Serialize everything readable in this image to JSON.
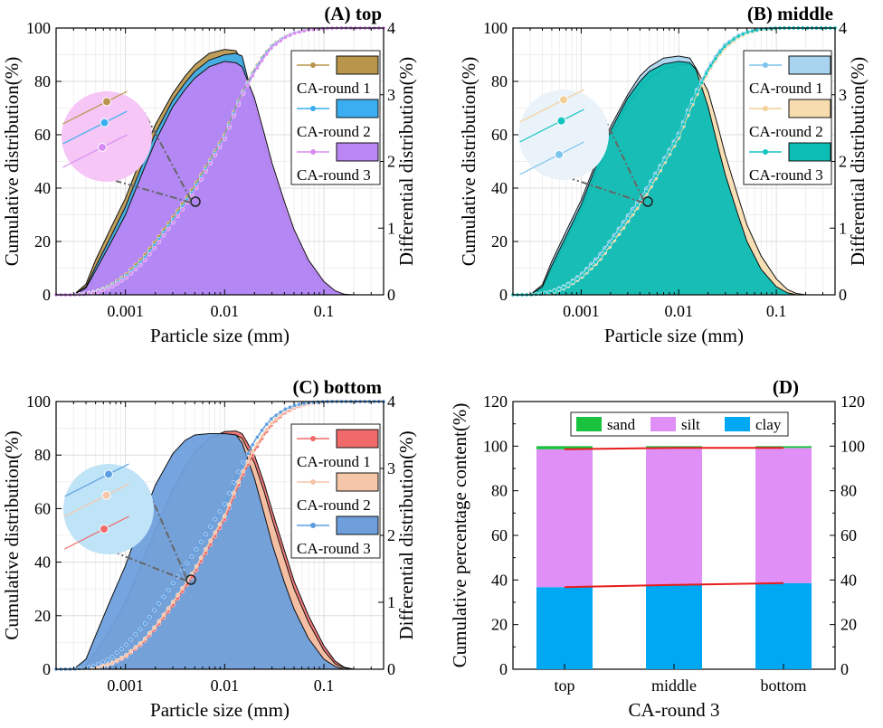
{
  "colors": {
    "top": [
      "#b8954a",
      "#3aaef0",
      "#d88cf2"
    ],
    "middle": [
      "#7cc4ec",
      "#f2cf98",
      "#12c4c0"
    ],
    "bottom": [
      "#f06a6a",
      "#f5c6a8",
      "#5c9ee2"
    ],
    "top_fill": [
      "#b8954a",
      "#3aaef0",
      "#b986f4"
    ],
    "middle_fill": [
      "#a8d4f0",
      "#f6dcae",
      "#0cbdb5"
    ],
    "bottom_fill": [
      "#f06a6a",
      "#f5c6a8",
      "#6e9fdc"
    ],
    "magnifier": [
      "#f6c6f6",
      "#ebf3fa",
      "#bfe3f7"
    ],
    "sand": "#19c23f",
    "silt": "#df8ff5",
    "clay": "#00a7f2",
    "trend": "#e81c1c"
  },
  "chart_data": [
    {
      "type": "area",
      "panel": "A",
      "title": "(A) top",
      "xlabel": "Particle size (mm)",
      "ylabel": "Cumulative distribution(%)",
      "y2label": "Differential distribution(%)",
      "xscale": "log",
      "xlim": [
        0.0002,
        0.4
      ],
      "ylim": [
        0,
        100
      ],
      "y2lim": [
        0,
        4
      ],
      "xticks": [
        "0.001",
        "0.01",
        "0.1"
      ],
      "yticks": [
        "0",
        "20",
        "40",
        "60",
        "80",
        "100"
      ],
      "y2ticks": [
        "0",
        "1",
        "2",
        "3",
        "4"
      ],
      "legend_position": "right",
      "x": [
        0.0002,
        0.0003,
        0.0004,
        0.0005,
        0.0007,
        0.001,
        0.0015,
        0.002,
        0.003,
        0.004,
        0.005,
        0.007,
        0.01,
        0.013,
        0.015,
        0.02,
        0.025,
        0.03,
        0.04,
        0.05,
        0.07,
        0.1,
        0.13,
        0.16,
        0.2,
        0.3,
        0.4
      ],
      "series": [
        {
          "name": "CA-round 1",
          "differential": [
            0,
            0,
            0.16,
            0.52,
            0.98,
            1.45,
            2.12,
            2.55,
            3.02,
            3.28,
            3.45,
            3.62,
            3.68,
            3.66,
            3.5,
            2.75,
            2.2,
            1.75,
            1.2,
            0.82,
            0.42,
            0.14,
            0.03,
            0,
            0,
            0,
            0
          ],
          "cumulative": [
            0,
            0.05,
            0.4,
            1.2,
            3.4,
            7.4,
            14,
            20,
            29,
            35.5,
            41,
            50,
            60,
            70.5,
            75.5,
            84.5,
            90,
            93.5,
            96.8,
            98.3,
            99.5,
            99.9,
            100,
            100,
            100,
            100,
            100
          ]
        },
        {
          "name": "CA-round 2",
          "differential": [
            0,
            0,
            0.12,
            0.42,
            0.85,
            1.32,
            1.98,
            2.42,
            2.92,
            3.18,
            3.35,
            3.52,
            3.6,
            3.62,
            3.58,
            2.85,
            2.3,
            1.85,
            1.28,
            0.88,
            0.46,
            0.16,
            0.04,
            0,
            0,
            0,
            0
          ],
          "cumulative": [
            0,
            0.03,
            0.3,
            1,
            3,
            6.8,
            13,
            19,
            28,
            34.5,
            40,
            49.2,
            59.2,
            69.8,
            75,
            84,
            89.6,
            93.2,
            96.6,
            98.2,
            99.4,
            99.9,
            100,
            100,
            100,
            100,
            100
          ]
        },
        {
          "name": "CA-round 3",
          "differential": [
            0,
            0,
            0.1,
            0.36,
            0.76,
            1.2,
            1.85,
            2.3,
            2.82,
            3.08,
            3.25,
            3.42,
            3.5,
            3.48,
            3.42,
            2.95,
            2.42,
            1.98,
            1.4,
            0.98,
            0.52,
            0.2,
            0.06,
            0.01,
            0,
            0,
            0
          ],
          "cumulative": [
            0,
            0.02,
            0.2,
            0.8,
            2.6,
            6.2,
            12,
            18,
            27,
            33.5,
            39,
            48.5,
            58.5,
            69,
            74.5,
            83.5,
            89,
            92.8,
            96.3,
            98,
            99.3,
            99.8,
            100,
            100,
            100,
            100,
            100
          ]
        }
      ]
    },
    {
      "type": "area",
      "panel": "B",
      "title": "(B) middle",
      "xlabel": "Particle size (mm)",
      "ylabel": "Cumulative distribution(%)",
      "y2label": "Differential distribution(%)",
      "xscale": "log",
      "xlim": [
        0.0002,
        0.4
      ],
      "ylim": [
        0,
        100
      ],
      "y2lim": [
        0,
        4
      ],
      "xticks": [
        "0.001",
        "0.01",
        "0.1"
      ],
      "yticks": [
        "0",
        "20",
        "40",
        "60",
        "80",
        "100"
      ],
      "y2ticks": [
        "0",
        "1",
        "2",
        "3",
        "4"
      ],
      "legend_position": "right",
      "x": [
        0.0002,
        0.0003,
        0.0004,
        0.0005,
        0.0007,
        0.001,
        0.0015,
        0.002,
        0.003,
        0.004,
        0.005,
        0.007,
        0.01,
        0.013,
        0.015,
        0.02,
        0.025,
        0.03,
        0.04,
        0.05,
        0.07,
        0.1,
        0.13,
        0.16,
        0.2,
        0.3,
        0.4
      ],
      "series": [
        {
          "name": "CA-round 1",
          "differential": [
            0,
            0,
            0.15,
            0.5,
            0.95,
            1.42,
            2.08,
            2.52,
            3,
            3.28,
            3.42,
            3.55,
            3.58,
            3.55,
            3.4,
            2.72,
            2.15,
            1.7,
            1.12,
            0.72,
            0.32,
            0.08,
            0.02,
            0,
            0,
            0,
            0
          ],
          "cumulative": [
            0,
            0.05,
            0.4,
            1.2,
            3.5,
            7.6,
            14.2,
            20.3,
            29.5,
            36,
            41.5,
            50.5,
            60.5,
            71,
            76,
            85,
            90.5,
            94,
            97.2,
            98.6,
            99.7,
            100,
            100,
            100,
            100,
            100,
            100
          ]
        },
        {
          "name": "CA-round 2",
          "differential": [
            0,
            0,
            0.1,
            0.38,
            0.8,
            1.25,
            1.9,
            2.35,
            2.85,
            3.1,
            3.25,
            3.38,
            3.45,
            3.45,
            3.4,
            3.05,
            2.55,
            2.1,
            1.5,
            1.05,
            0.58,
            0.24,
            0.08,
            0.02,
            0,
            0,
            0
          ],
          "cumulative": [
            0,
            0.03,
            0.3,
            0.9,
            2.8,
            6.5,
            12.5,
            18.5,
            27.5,
            34,
            39.5,
            49,
            59,
            69.2,
            74.5,
            83.5,
            89,
            92.6,
            96.2,
            98,
            99.3,
            99.8,
            100,
            100,
            100,
            100,
            100
          ]
        },
        {
          "name": "CA-round 3",
          "differential": [
            0,
            0,
            0.12,
            0.44,
            0.88,
            1.35,
            2.02,
            2.46,
            2.95,
            3.2,
            3.35,
            3.46,
            3.5,
            3.48,
            3.38,
            2.82,
            2.25,
            1.8,
            1.22,
            0.8,
            0.38,
            0.12,
            0.03,
            0,
            0,
            0,
            0
          ],
          "cumulative": [
            0,
            0.04,
            0.35,
            1,
            3.1,
            7,
            13.2,
            19.3,
            28.5,
            35,
            40.5,
            49.8,
            59.8,
            70.2,
            75.3,
            84.3,
            89.8,
            93.4,
            96.8,
            98.4,
            99.6,
            99.95,
            100,
            100,
            100,
            100,
            100
          ]
        }
      ]
    },
    {
      "type": "area",
      "panel": "C",
      "title": "(C) bottom",
      "xlabel": "Particle size (mm)",
      "ylabel": "Cumulative distribution(%)",
      "y2label": "Differential distribution(%)",
      "xscale": "log",
      "xlim": [
        0.0002,
        0.4
      ],
      "ylim": [
        0,
        100
      ],
      "y2lim": [
        0,
        4
      ],
      "xticks": [
        "0.001",
        "0.01",
        "0.1"
      ],
      "yticks": [
        "0",
        "20",
        "40",
        "60",
        "80",
        "100"
      ],
      "y2ticks": [
        "0",
        "1",
        "2",
        "3",
        "4"
      ],
      "legend_position": "right",
      "x": [
        0.0002,
        0.0003,
        0.0004,
        0.0005,
        0.0007,
        0.001,
        0.0015,
        0.002,
        0.003,
        0.004,
        0.005,
        0.007,
        0.01,
        0.013,
        0.015,
        0.02,
        0.025,
        0.03,
        0.04,
        0.05,
        0.07,
        0.1,
        0.13,
        0.16,
        0.2,
        0.3,
        0.4
      ],
      "series": [
        {
          "name": "CA-round 1",
          "differential": [
            0,
            0,
            0.05,
            0.22,
            0.55,
            0.95,
            1.55,
            2.02,
            2.62,
            2.98,
            3.22,
            3.45,
            3.55,
            3.56,
            3.52,
            3.2,
            2.78,
            2.38,
            1.78,
            1.32,
            0.8,
            0.35,
            0.12,
            0.03,
            0,
            0,
            0
          ],
          "cumulative": [
            0,
            0.02,
            0.15,
            0.5,
            1.8,
            4.6,
            9.8,
            15.2,
            23.8,
            30.5,
            36,
            45.8,
            56,
            66.5,
            72,
            81.5,
            87.5,
            91.5,
            95.6,
            97.6,
            99.1,
            99.7,
            99.95,
            100,
            100,
            100,
            100
          ]
        },
        {
          "name": "CA-round 2",
          "differential": [
            0,
            0,
            0.06,
            0.25,
            0.6,
            1,
            1.62,
            2.08,
            2.68,
            3.02,
            3.25,
            3.45,
            3.52,
            3.5,
            3.45,
            3.08,
            2.65,
            2.25,
            1.65,
            1.2,
            0.7,
            0.28,
            0.08,
            0.02,
            0,
            0,
            0
          ],
          "cumulative": [
            0,
            0.02,
            0.18,
            0.6,
            2,
            5,
            10.5,
            16,
            25,
            31.8,
            37.3,
            47.2,
            57.3,
            67.8,
            73.2,
            82.6,
            88.4,
            92.2,
            96.1,
            98,
            99.3,
            99.8,
            100,
            100,
            100,
            100,
            100
          ]
        },
        {
          "name": "CA-round 3",
          "differential": [
            0,
            0,
            0.15,
            0.5,
            1.02,
            1.55,
            2.28,
            2.75,
            3.22,
            3.42,
            3.5,
            3.52,
            3.52,
            3.5,
            3.38,
            2.85,
            2.32,
            1.88,
            1.3,
            0.9,
            0.46,
            0.15,
            0.04,
            0,
            0,
            0,
            0
          ],
          "cumulative": [
            0,
            0.05,
            0.45,
            1.4,
            4,
            8.8,
            16,
            22.5,
            32,
            38.5,
            43.8,
            52.5,
            61.8,
            71.6,
            76.5,
            85.2,
            90.4,
            93.8,
            97,
            98.5,
            99.6,
            99.95,
            100,
            100,
            100,
            100,
            100
          ]
        }
      ]
    },
    {
      "type": "bar",
      "stacked": true,
      "panel": "D",
      "title": "(D)",
      "xlabel": "CA-round 3",
      "ylabel": "Cumulative percentage content(%)",
      "categories": [
        "top",
        "middle",
        "bottom"
      ],
      "ylim": [
        0,
        120
      ],
      "yticks": [
        "0",
        "20",
        "40",
        "60",
        "80",
        "100",
        "120"
      ],
      "legend_position": "top",
      "series": [
        {
          "name": "clay",
          "values": [
            36.8,
            37.8,
            38.6
          ]
        },
        {
          "name": "silt",
          "values": [
            61.8,
            61.4,
            60.6
          ]
        },
        {
          "name": "sand",
          "values": [
            1.4,
            0.8,
            0.8
          ]
        }
      ]
    }
  ]
}
